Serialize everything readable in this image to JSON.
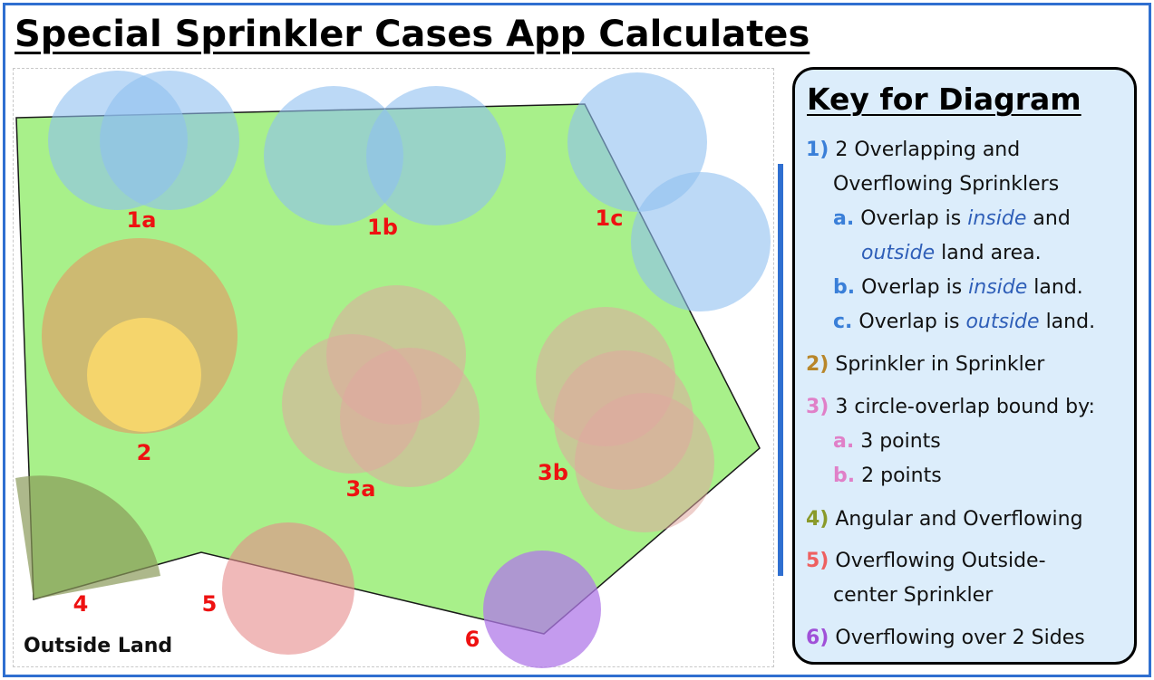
{
  "title": "Special Sprinkler Cases App Calculates",
  "diagram": {
    "labels": {
      "c1a": "1a",
      "c1b": "1b",
      "c1c": "1c",
      "c2": "2",
      "c3a": "3a",
      "c3b": "3b",
      "c4": "4",
      "c5": "5",
      "c6": "6"
    },
    "outside_land": "Outside Land",
    "colors": {
      "land_fill": "#a8f08a",
      "land_stroke": "#1a1a1a",
      "sprinkler_blue": "#8fc0f0",
      "sprinkler_tan": "#d9a86a",
      "sprinkler_yellow": "#fbd96b",
      "sprinkler_pink": "#f08aa8",
      "sprinkler_purple": "#b07ae8",
      "sector_olive": "#8a9a5a",
      "label_red": "#ee1111",
      "frame_blue": "#2f6fd0"
    }
  },
  "key": {
    "title": "Key for Diagram",
    "item1": {
      "num": "1)",
      "line1": "2 Overlapping and",
      "line2": "Overflowing Sprinklers",
      "sub_a": {
        "letter": "a.",
        "pre": "Overlap is",
        "em1": "inside",
        "mid": "and",
        "em2": "outside",
        "post": "land area."
      },
      "sub_b": {
        "letter": "b.",
        "pre": "Overlap is",
        "em": "inside",
        "post": "land."
      },
      "sub_c": {
        "letter": "c.",
        "pre": "Overlap is",
        "em": "outside",
        "post": "land."
      }
    },
    "item2": {
      "num": "2)",
      "text": "Sprinkler in Sprinkler"
    },
    "item3": {
      "num": "3)",
      "text": "3 circle-overlap bound by:",
      "sub_a": {
        "letter": "a.",
        "text": "3 points"
      },
      "sub_b": {
        "letter": "b.",
        "text": "2 points"
      }
    },
    "item4": {
      "num": "4)",
      "text": "Angular and Overflowing"
    },
    "item5": {
      "num": "5)",
      "line1": "Overflowing Outside-",
      "line2": "center Sprinkler"
    },
    "item6": {
      "num": "6)",
      "text": "Overflowing over 2 Sides"
    }
  }
}
